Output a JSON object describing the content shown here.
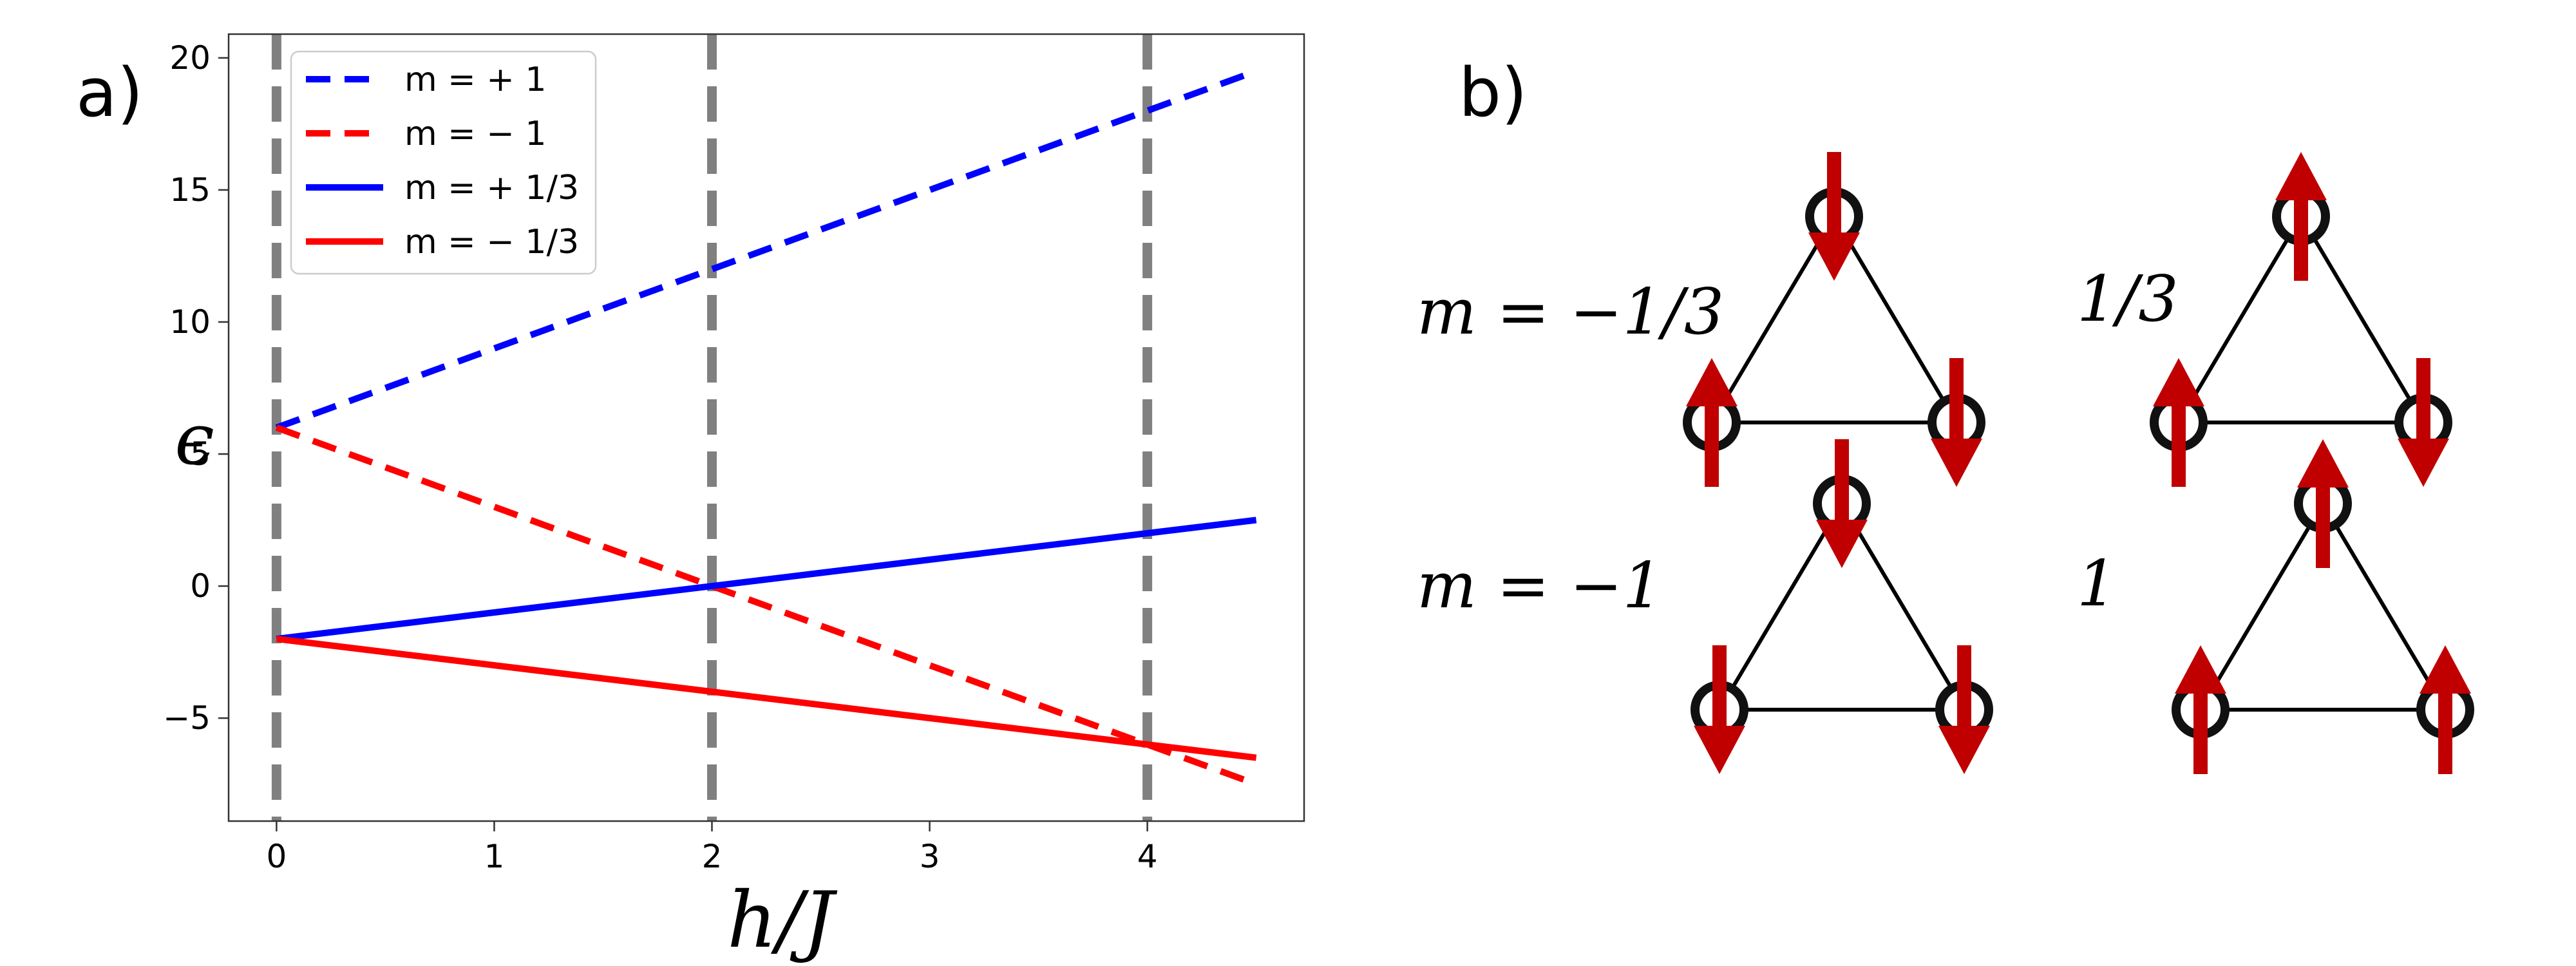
{
  "panel_labels": {
    "a": "a)",
    "b": "b)"
  },
  "chart_data": {
    "type": "line",
    "title": "",
    "xlabel": "h/J",
    "ylabel": "ϵ",
    "xlim": [
      -0.22,
      4.72
    ],
    "ylim": [
      -8.9,
      20.9
    ],
    "xticks": [
      0,
      1,
      2,
      3,
      4
    ],
    "yticks": [
      -5,
      0,
      5,
      10,
      15,
      20
    ],
    "x_tick_labels": [
      "0",
      "1",
      "2",
      "3",
      "4"
    ],
    "y_tick_labels": [
      "−5",
      "0",
      "5",
      "10",
      "15",
      "20"
    ],
    "grid": false,
    "legend_position": "top-left",
    "vertical_lines": [
      0,
      2,
      4
    ],
    "vertical_line_color": "#808080",
    "series": [
      {
        "name": "m = + 1",
        "color": "#0000ff",
        "style": "dashed",
        "x": [
          0,
          4.5
        ],
        "y": [
          6,
          19.5
        ]
      },
      {
        "name": "m = − 1",
        "color": "#ff0000",
        "style": "dashed",
        "x": [
          0,
          4.5
        ],
        "y": [
          6,
          -7.5
        ]
      },
      {
        "name": "m = + 1/3",
        "color": "#0000ff",
        "style": "solid",
        "x": [
          0,
          4.5
        ],
        "y": [
          -2,
          2.5
        ]
      },
      {
        "name": "m = − 1/3",
        "color": "#ff0000",
        "style": "solid",
        "x": [
          0,
          4.5
        ],
        "y": [
          -2,
          -6.5
        ]
      }
    ]
  },
  "diagram": {
    "row_labels": [
      "m = −1/3",
      "m = −1"
    ],
    "right_labels": [
      "1/3",
      "1"
    ],
    "arrow_color": "#c00000",
    "spin_configs": [
      [
        "down",
        "up",
        "down"
      ],
      [
        "up",
        "up",
        "down"
      ],
      [
        "down",
        "down",
        "down"
      ],
      [
        "up",
        "up",
        "up"
      ]
    ]
  }
}
